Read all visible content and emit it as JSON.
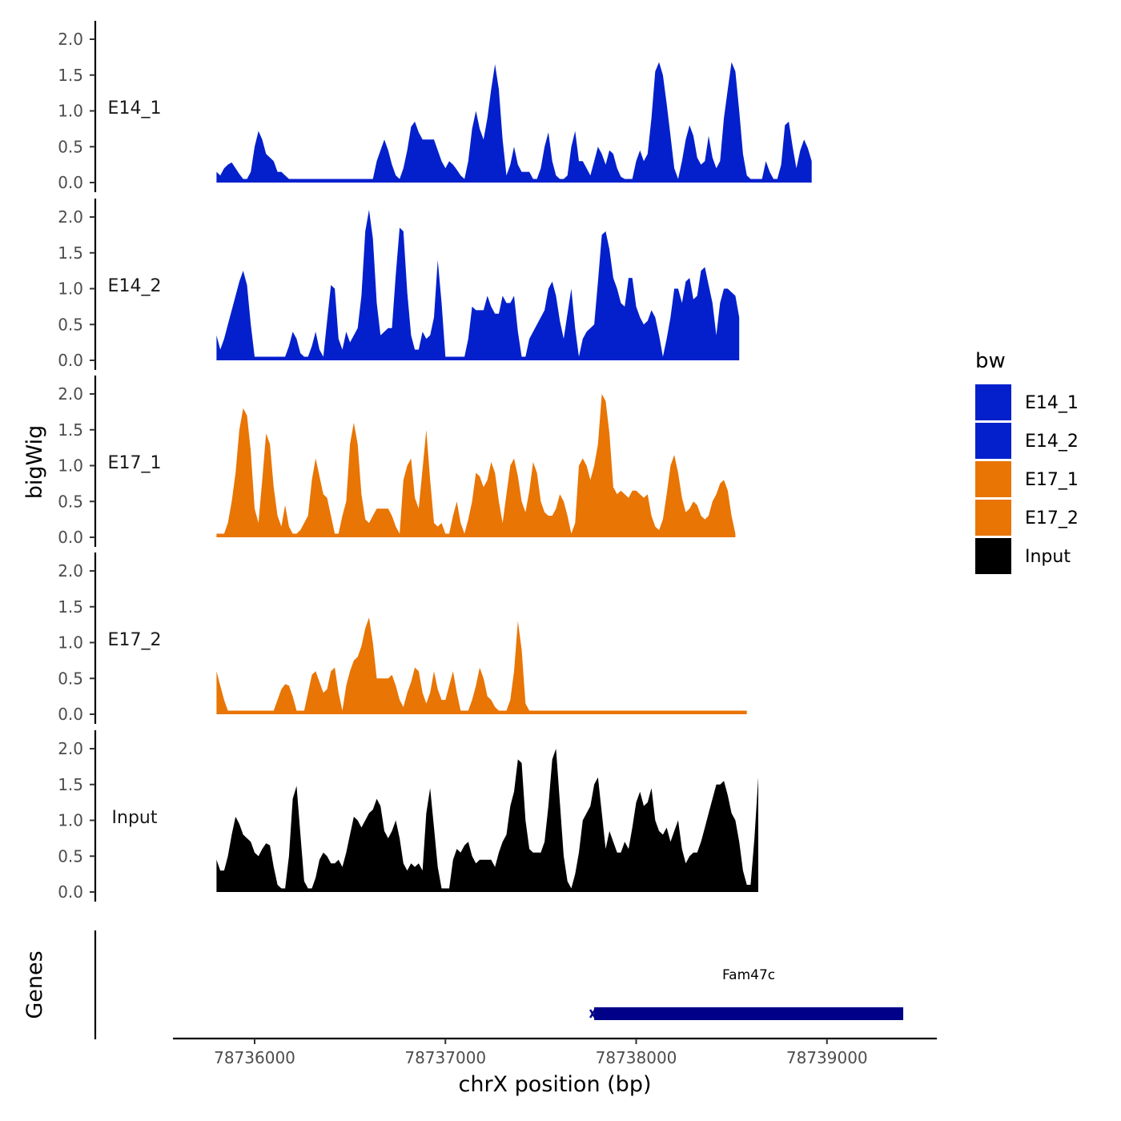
{
  "chart_data": {
    "type": "area",
    "xlabel": "chrX position (bp)",
    "ylabel": "bigWig",
    "genes_label": "Genes",
    "x_ticks": [
      78736000,
      78737000,
      78738000,
      78739000
    ],
    "x_tick_labels": [
      "78736000",
      "78737000",
      "78738000",
      "78739000"
    ],
    "xlim": [
      78735600,
      78739600
    ],
    "ylim": [
      0,
      2.1
    ],
    "y_ticks": [
      0,
      0.5,
      1,
      1.5,
      2
    ],
    "y_tick_labels": [
      "0.0",
      "0.5",
      "1.0",
      "1.5",
      "2.0"
    ],
    "x_start": 78735800,
    "x_step": 20,
    "legend": {
      "title": "bw",
      "items": [
        {
          "label": "E14_1",
          "color": "#0320CC"
        },
        {
          "label": "E14_2",
          "color": "#0320CC"
        },
        {
          "label": "E17_1",
          "color": "#E87504"
        },
        {
          "label": "E17_2",
          "color": "#E87504"
        },
        {
          "label": "Input",
          "color": "#000000"
        }
      ]
    },
    "series": [
      {
        "name": "E14_1",
        "color": "#0320CC",
        "values": [
          0.15,
          0.1,
          0.2,
          0.25,
          0.28,
          0.2,
          0.12,
          0.05,
          0.05,
          0.15,
          0.5,
          0.72,
          0.6,
          0.4,
          0.35,
          0.3,
          0.15,
          0.15,
          0.1,
          0.05,
          0.05,
          0.05,
          0.05,
          0.05,
          0.05,
          0.05,
          0.05,
          0.05,
          0.05,
          0.05,
          0.05,
          0.05,
          0.05,
          0.05,
          0.05,
          0.05,
          0.05,
          0.05,
          0.05,
          0.05,
          0.05,
          0.05,
          0.3,
          0.45,
          0.6,
          0.45,
          0.25,
          0.1,
          0.05,
          0.2,
          0.45,
          0.78,
          0.85,
          0.7,
          0.6,
          0.6,
          0.6,
          0.6,
          0.45,
          0.3,
          0.2,
          0.3,
          0.25,
          0.18,
          0.1,
          0.05,
          0.3,
          0.75,
          1.0,
          0.75,
          0.6,
          0.9,
          1.3,
          1.65,
          1.3,
          0.6,
          0.1,
          0.25,
          0.5,
          0.25,
          0.15,
          0.15,
          0.15,
          0.05,
          0.05,
          0.2,
          0.5,
          0.7,
          0.3,
          0.1,
          0.05,
          0.05,
          0.1,
          0.5,
          0.72,
          0.3,
          0.3,
          0.2,
          0.1,
          0.3,
          0.5,
          0.4,
          0.25,
          0.45,
          0.4,
          0.2,
          0.08,
          0.05,
          0.05,
          0.05,
          0.3,
          0.45,
          0.3,
          0.4,
          0.9,
          1.55,
          1.68,
          1.5,
          1.1,
          0.65,
          0.2,
          0.05,
          0.3,
          0.6,
          0.8,
          0.65,
          0.35,
          0.25,
          0.3,
          0.65,
          0.35,
          0.2,
          0.3,
          0.9,
          1.3,
          1.68,
          1.55,
          1.0,
          0.4,
          0.1,
          0.05,
          0.05,
          0.05,
          0.05,
          0.3,
          0.15,
          0.05,
          0.05,
          0.25,
          0.8,
          0.85,
          0.5,
          0.2,
          0.45,
          0.6,
          0.48,
          0.3
        ]
      },
      {
        "name": "E14_2",
        "color": "#0320CC",
        "values": [
          0.35,
          0.15,
          0.3,
          0.5,
          0.7,
          0.9,
          1.1,
          1.25,
          1.05,
          0.5,
          0.05,
          0.05,
          0.05,
          0.05,
          0.05,
          0.05,
          0.05,
          0.05,
          0.05,
          0.2,
          0.4,
          0.3,
          0.1,
          0.05,
          0.05,
          0.2,
          0.4,
          0.15,
          0.05,
          0.55,
          1.05,
          1.0,
          0.3,
          0.15,
          0.4,
          0.25,
          0.35,
          0.45,
          0.9,
          1.8,
          2.1,
          1.7,
          0.8,
          0.35,
          0.4,
          0.45,
          0.45,
          1.2,
          1.85,
          1.8,
          0.95,
          0.35,
          0.15,
          0.15,
          0.4,
          0.3,
          0.35,
          0.6,
          1.4,
          0.8,
          0.05,
          0.05,
          0.05,
          0.05,
          0.05,
          0.05,
          0.3,
          0.75,
          0.7,
          0.7,
          0.7,
          0.9,
          0.75,
          0.65,
          0.65,
          0.9,
          0.8,
          0.8,
          0.9,
          0.4,
          0.05,
          0.05,
          0.3,
          0.4,
          0.5,
          0.6,
          0.7,
          1.0,
          1.1,
          0.9,
          0.55,
          0.3,
          0.65,
          1.0,
          0.45,
          0.05,
          0.3,
          0.4,
          0.45,
          0.5,
          1.1,
          1.75,
          1.8,
          1.55,
          1.15,
          1.0,
          0.8,
          0.75,
          1.15,
          1.15,
          0.75,
          0.6,
          0.5,
          0.55,
          0.7,
          0.6,
          0.35,
          0.05,
          0.3,
          0.6,
          1.0,
          1.0,
          0.8,
          1.1,
          1.15,
          0.85,
          0.9,
          1.25,
          1.3,
          1.05,
          0.8,
          0.35,
          0.8,
          1.0,
          1.0,
          0.95,
          0.9,
          0.6
        ]
      },
      {
        "name": "E17_1",
        "color": "#E87504",
        "values": [
          0.05,
          0.05,
          0.05,
          0.2,
          0.5,
          0.9,
          1.5,
          1.8,
          1.7,
          1.2,
          0.4,
          0.2,
          0.8,
          1.45,
          1.3,
          0.7,
          0.3,
          0.15,
          0.45,
          0.15,
          0.05,
          0.05,
          0.1,
          0.2,
          0.3,
          0.8,
          1.1,
          0.85,
          0.6,
          0.55,
          0.3,
          0.05,
          0.05,
          0.3,
          0.5,
          1.3,
          1.6,
          1.3,
          0.6,
          0.25,
          0.2,
          0.3,
          0.4,
          0.4,
          0.4,
          0.4,
          0.3,
          0.15,
          0.05,
          0.8,
          1.0,
          1.1,
          0.55,
          0.4,
          0.95,
          1.5,
          0.8,
          0.2,
          0.15,
          0.2,
          0.05,
          0.05,
          0.3,
          0.5,
          0.2,
          0.05,
          0.25,
          0.5,
          0.9,
          0.85,
          0.7,
          0.8,
          1.05,
          0.9,
          0.5,
          0.2,
          0.6,
          1.0,
          1.1,
          0.85,
          0.5,
          0.35,
          0.65,
          1.05,
          0.9,
          0.5,
          0.35,
          0.3,
          0.3,
          0.4,
          0.6,
          0.5,
          0.3,
          0.05,
          0.2,
          1.0,
          1.1,
          1.0,
          0.8,
          1.0,
          1.3,
          2.0,
          1.9,
          1.45,
          0.7,
          0.6,
          0.65,
          0.6,
          0.55,
          0.65,
          0.65,
          0.6,
          0.55,
          0.6,
          0.3,
          0.15,
          0.1,
          0.25,
          0.6,
          1.0,
          1.15,
          0.9,
          0.55,
          0.35,
          0.4,
          0.5,
          0.45,
          0.3,
          0.25,
          0.3,
          0.5,
          0.6,
          0.75,
          0.8,
          0.65,
          0.3,
          0.05
        ]
      },
      {
        "name": "E17_2",
        "color": "#E87504",
        "values": [
          0.6,
          0.4,
          0.2,
          0.05,
          0.05,
          0.05,
          0.05,
          0.05,
          0.05,
          0.05,
          0.05,
          0.05,
          0.05,
          0.05,
          0.05,
          0.05,
          0.2,
          0.35,
          0.42,
          0.4,
          0.25,
          0.05,
          0.05,
          0.05,
          0.3,
          0.55,
          0.6,
          0.45,
          0.3,
          0.35,
          0.6,
          0.65,
          0.3,
          0.05,
          0.4,
          0.6,
          0.75,
          0.8,
          0.95,
          1.2,
          1.35,
          1.0,
          0.5,
          0.5,
          0.5,
          0.5,
          0.55,
          0.4,
          0.2,
          0.1,
          0.3,
          0.45,
          0.65,
          0.6,
          0.3,
          0.15,
          0.3,
          0.6,
          0.35,
          0.2,
          0.2,
          0.4,
          0.6,
          0.3,
          0.05,
          0.05,
          0.05,
          0.2,
          0.4,
          0.65,
          0.5,
          0.25,
          0.2,
          0.1,
          0.05,
          0.05,
          0.05,
          0.2,
          0.6,
          1.3,
          0.9,
          0.15,
          0.05,
          0.05,
          0.05,
          0.05,
          0.05,
          0.05,
          0.05,
          0.05,
          0.05,
          0.05,
          0.05,
          0.05,
          0.05,
          0.05,
          0.05,
          0.05,
          0.05,
          0.05,
          0.05,
          0.05,
          0.05,
          0.05,
          0.05,
          0.05,
          0.05,
          0.05,
          0.05,
          0.05,
          0.05,
          0.05,
          0.05,
          0.05,
          0.05,
          0.05,
          0.05,
          0.05,
          0.05,
          0.05,
          0.05,
          0.05,
          0.05,
          0.05,
          0.05,
          0.05,
          0.05,
          0.05,
          0.05,
          0.05,
          0.05,
          0.05,
          0.05,
          0.05,
          0.05,
          0.05,
          0.05,
          0.05,
          0.05,
          0.05
        ]
      },
      {
        "name": "Input",
        "color": "#000000",
        "values": [
          0.45,
          0.3,
          0.3,
          0.5,
          0.8,
          1.05,
          0.95,
          0.8,
          0.75,
          0.7,
          0.55,
          0.5,
          0.6,
          0.68,
          0.65,
          0.35,
          0.1,
          0.05,
          0.05,
          0.5,
          1.3,
          1.48,
          0.8,
          0.15,
          0.05,
          0.05,
          0.2,
          0.45,
          0.55,
          0.5,
          0.4,
          0.4,
          0.45,
          0.35,
          0.55,
          0.8,
          1.05,
          1.0,
          0.9,
          1.0,
          1.1,
          1.15,
          1.3,
          1.2,
          0.85,
          0.75,
          0.85,
          1.0,
          0.75,
          0.4,
          0.3,
          0.4,
          0.35,
          0.4,
          0.3,
          1.1,
          1.45,
          0.9,
          0.35,
          0.05,
          0.05,
          0.05,
          0.45,
          0.6,
          0.55,
          0.65,
          0.7,
          0.5,
          0.4,
          0.45,
          0.45,
          0.45,
          0.45,
          0.35,
          0.55,
          0.7,
          0.8,
          1.2,
          1.4,
          1.85,
          1.8,
          1.0,
          0.6,
          0.55,
          0.55,
          0.55,
          0.7,
          1.2,
          1.85,
          2.0,
          1.25,
          0.5,
          0.15,
          0.05,
          0.25,
          0.55,
          1.0,
          1.1,
          1.2,
          1.5,
          1.6,
          1.1,
          0.6,
          0.85,
          0.7,
          0.55,
          0.55,
          0.7,
          0.6,
          0.9,
          1.25,
          1.4,
          1.2,
          1.25,
          1.45,
          1.0,
          0.85,
          0.8,
          0.9,
          0.7,
          0.85,
          1.0,
          0.6,
          0.4,
          0.5,
          0.55,
          0.55,
          0.7,
          0.9,
          1.1,
          1.3,
          1.5,
          1.5,
          1.55,
          1.35,
          1.1,
          1.0,
          0.7,
          0.3,
          0.1,
          0.1,
          0.75,
          1.6
        ]
      }
    ],
    "gene": {
      "name": "Fam47c",
      "start": 78737780,
      "end": 78739400,
      "color": "#000088"
    }
  }
}
